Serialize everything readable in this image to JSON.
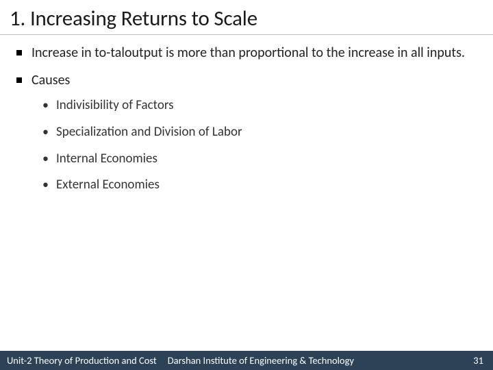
{
  "title": "1. Increasing Returns to Scale",
  "bullets": {
    "b1": "Increase in to-taloutput is more than proportional to the increase in all inputs.",
    "b2": "Causes",
    "sub": {
      "s1": "Indivisibility of Factors",
      "s2": "Specialization and Division of Labor",
      "s3": "Internal Economies",
      "s4": "External Economies"
    }
  },
  "footer": {
    "unit": "Unit-2 Theory of Production and Cost",
    "institute": "Darshan Institute of Engineering & Technology",
    "page": "31"
  },
  "colors": {
    "footer_bg": "#2d4256",
    "text": "#1a1a1a",
    "rule": "#bfbfbf"
  }
}
